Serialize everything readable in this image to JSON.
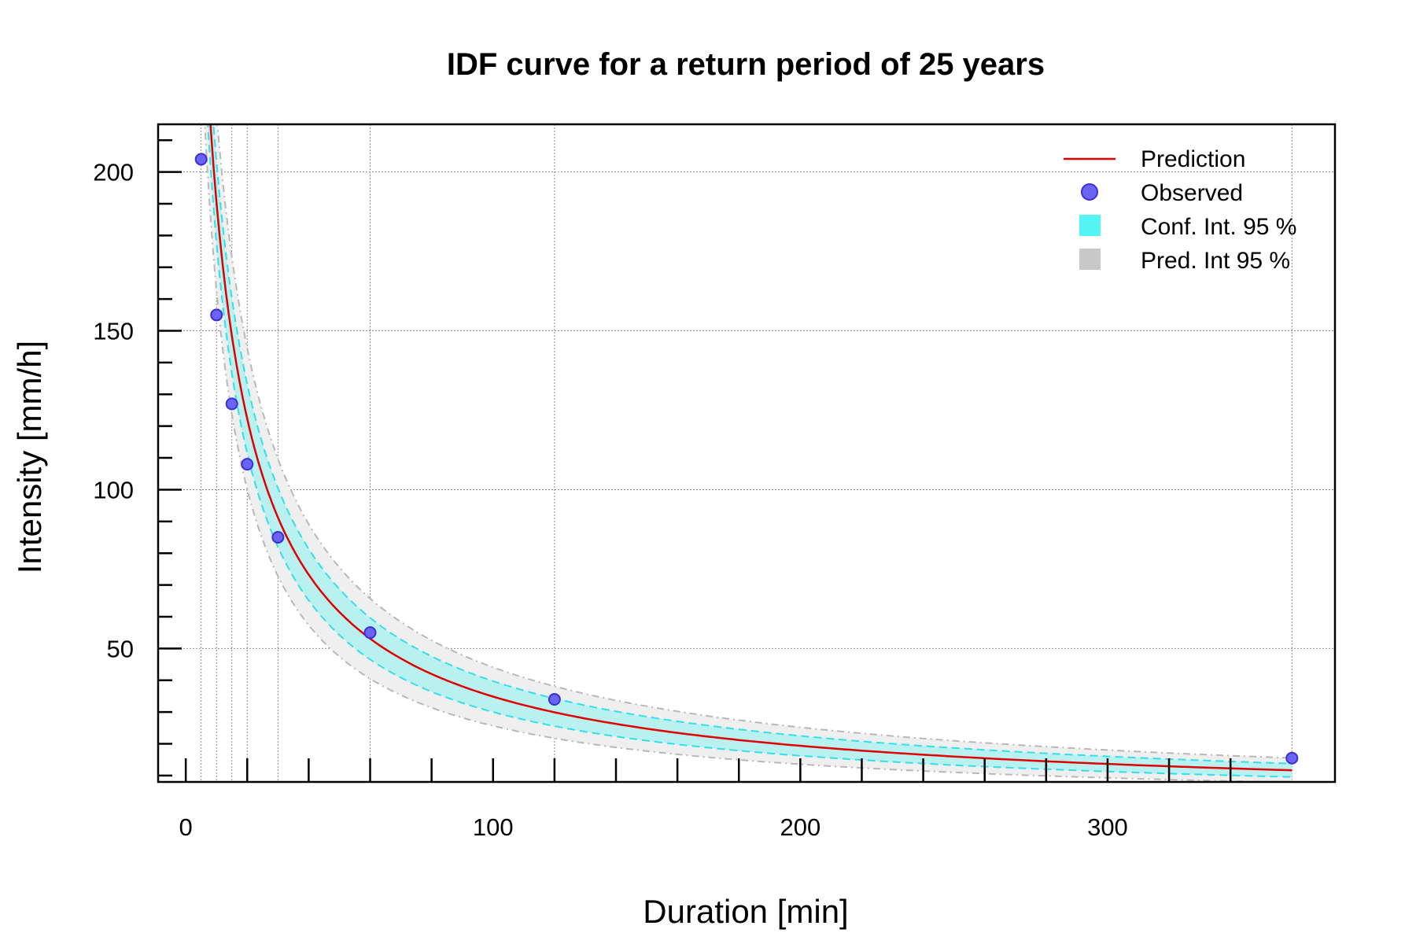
{
  "chart_data": {
    "type": "line",
    "title": "IDF curve for a return period of 25 years",
    "xlabel": "Duration [min]",
    "ylabel": "Intensity [mm/h]",
    "xlim": [
      -9,
      374
    ],
    "ylim": [
      8,
      215
    ],
    "x_ticks": [
      0,
      100,
      200,
      300
    ],
    "y_ticks": [
      50,
      100,
      150,
      200
    ],
    "x_tick_labels": [
      "0",
      "100",
      "200",
      "300"
    ],
    "y_tick_labels": [
      "50",
      "100",
      "150",
      "200"
    ],
    "x_minor_ticks": [
      0,
      20,
      40,
      60,
      80,
      100,
      120,
      140,
      160,
      180,
      200,
      220,
      240,
      260,
      280,
      300,
      320,
      340
    ],
    "y_minor_ticks": [
      10,
      20,
      30,
      40,
      50,
      60,
      70,
      80,
      90,
      100,
      110,
      120,
      130,
      140,
      150,
      160,
      170,
      180,
      190,
      200,
      210
    ],
    "x_gridlines": [
      5,
      10,
      15,
      20,
      30,
      60,
      120,
      360
    ],
    "y_gridlines": [
      50,
      100,
      150,
      200
    ],
    "model": {
      "a": 2100,
      "b": 5.3,
      "c": 0.88
    },
    "conf_half_width": {
      "short": 0.045,
      "long": 0.18
    },
    "pred_half_width": {
      "short": 0.11,
      "long": 0.33
    },
    "observed": {
      "x": [
        5,
        10,
        15,
        20,
        30,
        60,
        120,
        360
      ],
      "y": [
        204,
        155,
        127,
        108,
        85,
        55,
        34,
        15.5
      ]
    },
    "legend_position": "top-right",
    "legend": [
      {
        "label": "Prediction",
        "kind": "line"
      },
      {
        "label": "Observed",
        "kind": "point"
      },
      {
        "label": "Conf. Int. 95 %",
        "kind": "conf"
      },
      {
        "label": "Pred. Int 95 %",
        "kind": "pred"
      }
    ],
    "colors": {
      "prediction": "#e00000",
      "observed_fill": "#6b63f2",
      "observed_stroke": "#3a2fd8",
      "conf_fill": "#b9f0f0",
      "conf_line": "#33e0e8",
      "pred_fill": "#efefef",
      "pred_line": "#b8b8b8",
      "legend_conf": "#55f5f5",
      "legend_pred": "#c8c8c8",
      "grid": "#8a8a8a"
    }
  }
}
